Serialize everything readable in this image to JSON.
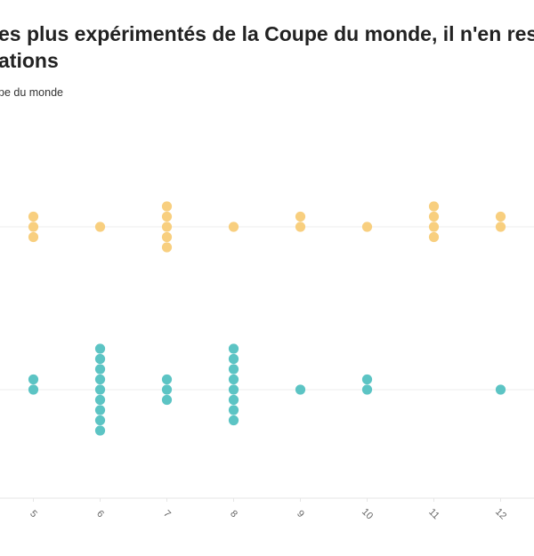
{
  "chart_data": {
    "type": "dot",
    "title": [
      "es plus expérimentés de la Coupe du monde, il n'en rest",
      "ations"
    ],
    "subtitle": "pe du monde",
    "x": [
      5,
      6,
      7,
      8,
      9,
      10,
      11,
      12
    ],
    "xlim": [
      4.5,
      12.5
    ],
    "xticks": [
      5,
      6,
      7,
      8,
      9,
      10,
      11,
      12
    ],
    "grid": true,
    "series": [
      {
        "color": "#f8cf7f",
        "values": [
          3,
          1,
          5,
          1,
          2,
          1,
          4,
          2
        ]
      },
      {
        "color": "#5cc4c4",
        "values": [
          2,
          9,
          3,
          8,
          1,
          2,
          0,
          1
        ]
      }
    ]
  }
}
